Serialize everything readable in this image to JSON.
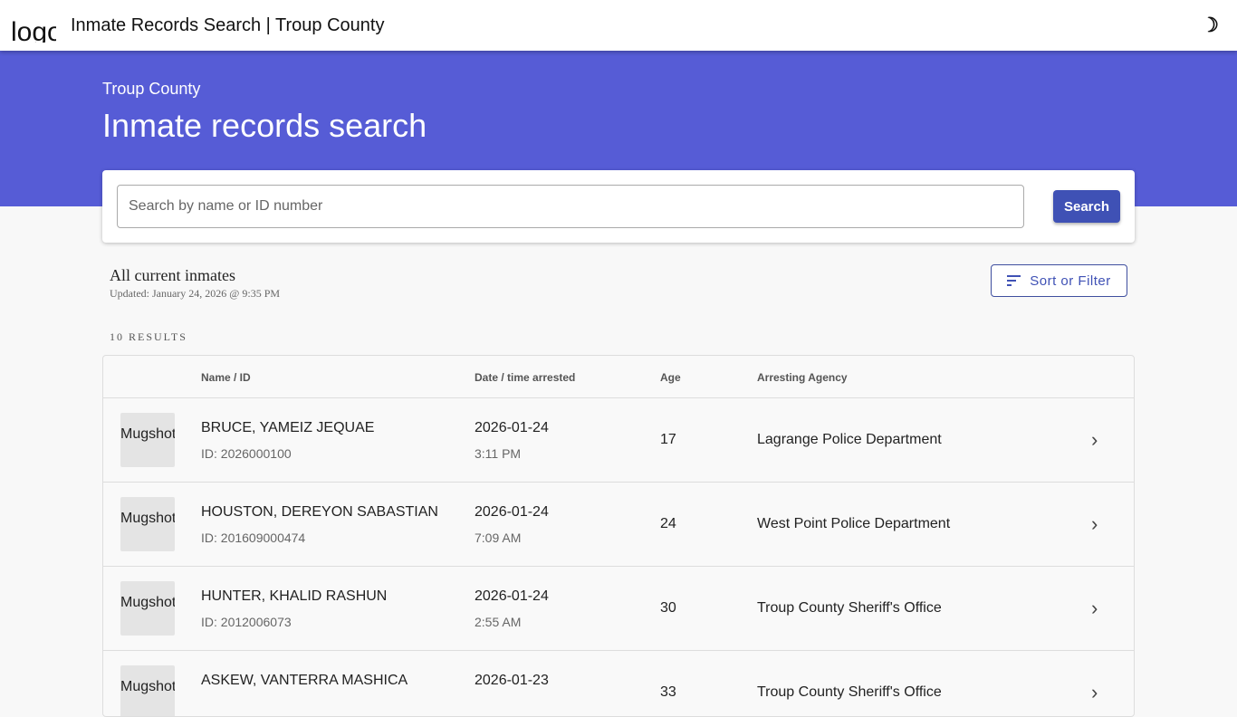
{
  "app": {
    "logo_alt": "logo",
    "title": "Inmate Records Search | Troup County",
    "theme_icon": "moon-icon"
  },
  "hero": {
    "county": "Troup County",
    "title": "Inmate records search"
  },
  "search": {
    "placeholder": "Search by name or ID number",
    "value": "",
    "button": "Search"
  },
  "section": {
    "title": "All current inmates",
    "updated": "Updated: January 24, 2026 @ 9:35 PM",
    "sort_button": "Sort or Filter",
    "results_count": "10 RESULTS"
  },
  "table": {
    "headers": {
      "name": "Name / ID",
      "date": "Date / time arrested",
      "age": "Age",
      "agency": "Arresting Agency"
    },
    "rows": [
      {
        "mugshot_alt": "Mugshot",
        "name": "BRUCE, YAMEIZ JEQUAE",
        "id": "ID: 2026000100",
        "date": "2026-01-24",
        "time": "3:11 PM",
        "age": "17",
        "agency": "Lagrange Police Department"
      },
      {
        "mugshot_alt": "Mugshot",
        "name": "HOUSTON, DEREYON SABASTIAN",
        "id": "ID: 201609000474",
        "date": "2026-01-24",
        "time": "7:09 AM",
        "age": "24",
        "agency": "West Point Police Department"
      },
      {
        "mugshot_alt": "Mugshot",
        "name": "HUNTER, KHALID RASHUN",
        "id": "ID: 2012006073",
        "date": "2026-01-24",
        "time": "2:55 AM",
        "age": "30",
        "agency": "Troup County Sheriff's Office"
      },
      {
        "mugshot_alt": "Mugshot",
        "name": "ASKEW, VANTERRA MASHICA",
        "id": "",
        "date": "2026-01-23",
        "time": "",
        "age": "33",
        "agency": "Troup County Sheriff's Office"
      }
    ]
  },
  "colors": {
    "brand": "#565cd6",
    "button": "#3f51b5"
  }
}
